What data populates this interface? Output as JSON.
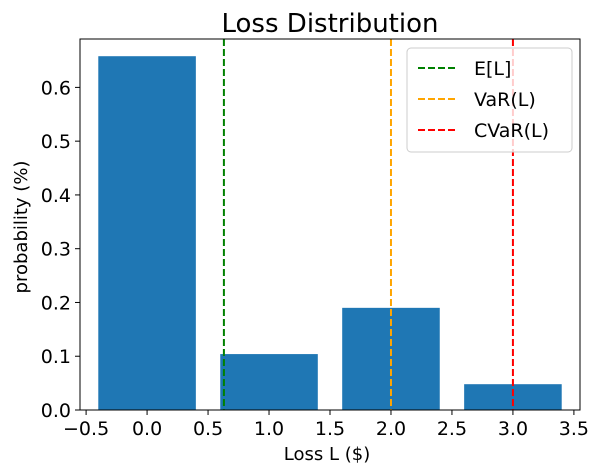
{
  "chart_data": {
    "type": "bar",
    "title": "Loss Distribution",
    "xlabel": "Loss L ($)",
    "ylabel": "probability (%)",
    "x": [
      0,
      1,
      2,
      3
    ],
    "values": [
      0.658,
      0.104,
      0.19,
      0.048
    ],
    "bar_width": 0.8,
    "bar_color": "#1f77b4",
    "xlim": [
      -0.55,
      3.55
    ],
    "ylim": [
      0,
      0.69
    ],
    "xticks": [
      -0.5,
      0.0,
      0.5,
      1.0,
      1.5,
      2.0,
      2.5,
      3.0,
      3.5
    ],
    "xtick_labels": [
      "−0.5",
      "0.0",
      "0.5",
      "1.0",
      "1.5",
      "2.0",
      "2.5",
      "3.0",
      "3.5"
    ],
    "yticks": [
      0.0,
      0.1,
      0.2,
      0.3,
      0.4,
      0.5,
      0.6
    ],
    "ytick_labels": [
      "0.0",
      "0.1",
      "0.2",
      "0.3",
      "0.4",
      "0.5",
      "0.6"
    ],
    "grid": false,
    "legend_position": "top-right",
    "vlines": [
      {
        "name": "E[L]",
        "x": 0.63,
        "color": "#008000",
        "style": "dashed"
      },
      {
        "name": "VaR(L)",
        "x": 2.0,
        "color": "#ffa500",
        "style": "dashed"
      },
      {
        "name": "CVaR(L)",
        "x": 3.0,
        "color": "#ff0000",
        "style": "dashed"
      }
    ]
  }
}
